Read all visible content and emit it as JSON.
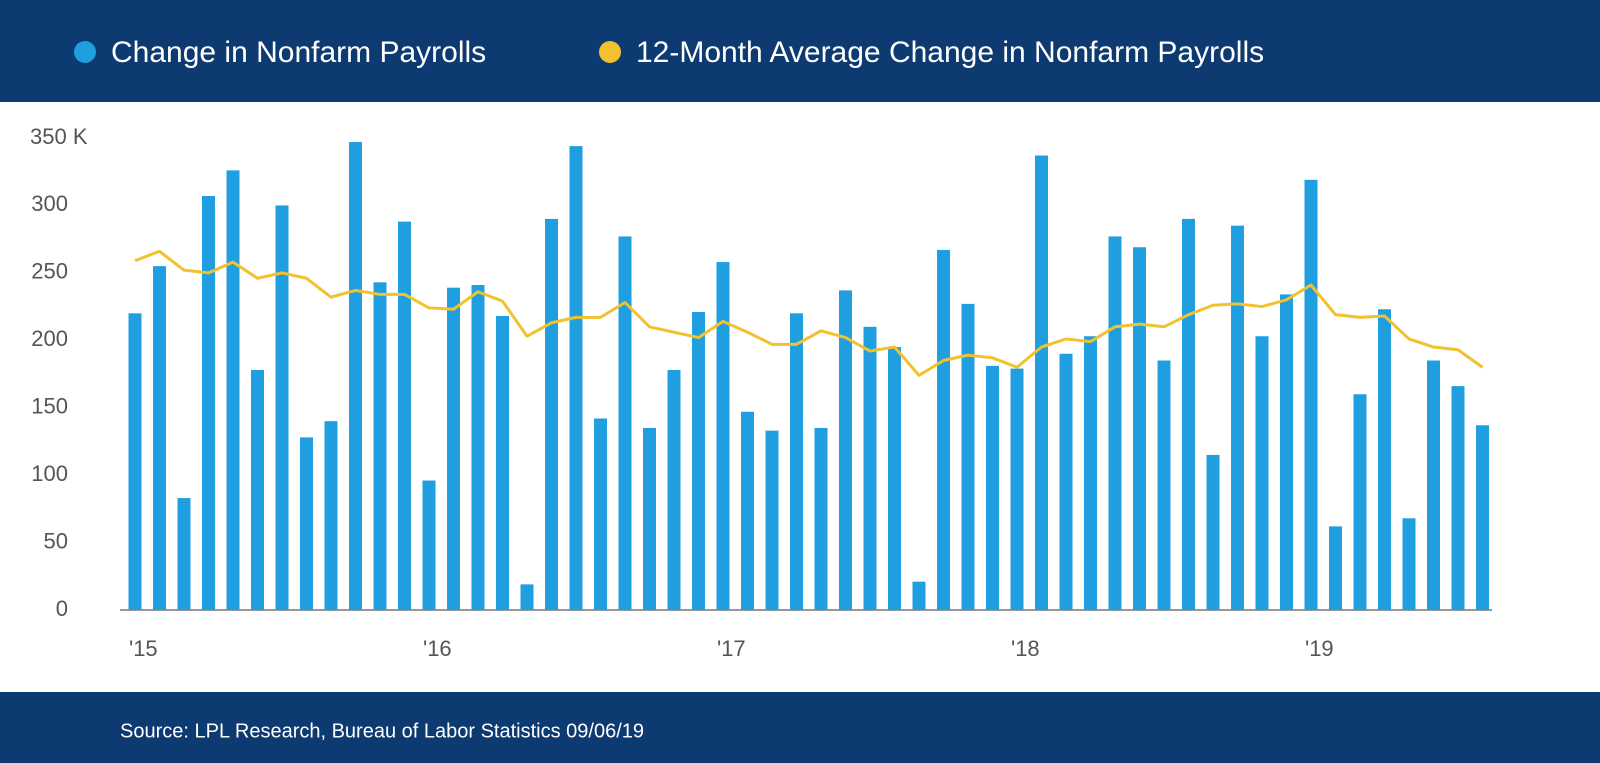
{
  "chart_data": {
    "type": "bar_line",
    "source": "Source: LPL Research, Bureau of Labor Statistics  09/06/19",
    "categories": [
      "'15",
      null,
      null,
      null,
      null,
      null,
      null,
      null,
      null,
      null,
      null,
      null,
      "'16",
      null,
      null,
      null,
      null,
      null,
      null,
      null,
      null,
      null,
      null,
      null,
      "'17",
      null,
      null,
      null,
      null,
      null,
      null,
      null,
      null,
      null,
      null,
      null,
      "'18",
      null,
      null,
      null,
      null,
      null,
      null,
      null,
      null,
      null,
      null,
      null,
      "'19",
      null,
      null,
      null,
      null,
      null,
      null,
      null
    ],
    "series": [
      {
        "name": "Change in Nonfarm Payrolls",
        "type": "bar",
        "color": "#1f9fe0",
        "values": [
          220,
          255,
          83,
          307,
          326,
          178,
          300,
          128,
          140,
          347,
          243,
          288,
          96,
          239,
          241,
          218,
          19,
          290,
          344,
          142,
          277,
          135,
          178,
          221,
          258,
          147,
          133,
          220,
          135,
          237,
          210,
          195,
          21,
          267,
          227,
          181,
          179,
          337,
          190,
          203,
          277,
          269,
          185,
          290,
          115,
          285,
          203,
          234,
          319,
          62,
          160,
          223,
          68,
          185,
          166,
          137
        ]
      },
      {
        "name": "12-Month Average Change in Nonfarm Payrolls",
        "type": "line",
        "color": "#f2c12e",
        "values": [
          259,
          266,
          252,
          250,
          258,
          246,
          250,
          246,
          232,
          237,
          234,
          234,
          224,
          223,
          236,
          229,
          203,
          213,
          217,
          217,
          228,
          210,
          206,
          202,
          214,
          206,
          197,
          197,
          207,
          202,
          192,
          195,
          174,
          185,
          189,
          187,
          180,
          195,
          201,
          199,
          210,
          212,
          210,
          219,
          226,
          227,
          225,
          230,
          241,
          219,
          217,
          218,
          201,
          195,
          193,
          180
        ]
      }
    ],
    "ylim": [
      0,
      350
    ],
    "yticks": [
      0,
      50,
      100,
      150,
      200,
      250,
      300,
      {
        "value": 350,
        "label": "350 K"
      }
    ],
    "grid": false
  }
}
